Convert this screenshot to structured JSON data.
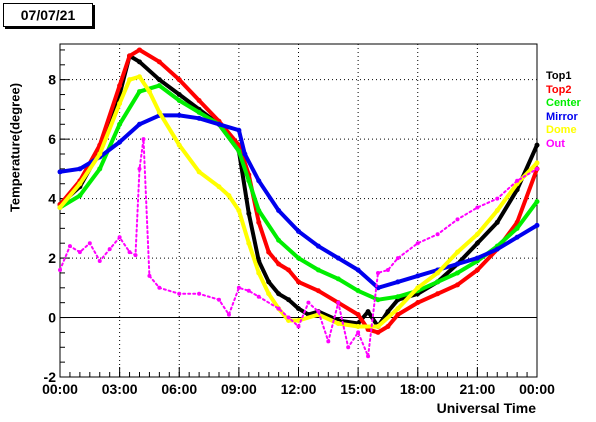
{
  "title": "07/07/21",
  "chart_data": {
    "type": "line",
    "xlabel": "Universal Time",
    "ylabel": "Temperature(degree)",
    "xlim": [
      0,
      24
    ],
    "ylim": [
      -2,
      9.2
    ],
    "x_ticks": [
      "00:00",
      "03:00",
      "06:00",
      "09:00",
      "12:00",
      "15:00",
      "18:00",
      "21:00",
      "00:00"
    ],
    "y_ticks": [
      "-2",
      "0",
      "2",
      "4",
      "6",
      "8"
    ],
    "grid": true,
    "legend_position": "right",
    "series": [
      {
        "name": "Top1",
        "color": "#000000",
        "style": "markers",
        "x": [
          0,
          1,
          2,
          3,
          3.5,
          4,
          5,
          6,
          7,
          8,
          9,
          9.5,
          10,
          10.5,
          11,
          11.5,
          12,
          12.5,
          13,
          14,
          15,
          15.5,
          16,
          16.5,
          17,
          18,
          19,
          20,
          21,
          22,
          23,
          24
        ],
        "y": [
          3.8,
          4.4,
          5.6,
          7.5,
          8.8,
          8.6,
          8.0,
          7.5,
          7.0,
          6.5,
          5.6,
          3.5,
          1.9,
          1.2,
          0.8,
          0.6,
          0.3,
          0.1,
          0.2,
          -0.1,
          -0.2,
          0.2,
          -0.3,
          0.2,
          0.6,
          0.8,
          1.2,
          1.8,
          2.5,
          3.2,
          4.3,
          5.8
        ]
      },
      {
        "name": "Top2",
        "color": "#ff0000",
        "style": "markers",
        "x": [
          0,
          1,
          2,
          3,
          3.5,
          4,
          5,
          6,
          7,
          8,
          9,
          9.5,
          10,
          10.5,
          11,
          11.5,
          12,
          13,
          14,
          15,
          15.5,
          16,
          16.5,
          17,
          18,
          19,
          20,
          21,
          22,
          23,
          24
        ],
        "y": [
          3.8,
          4.6,
          5.8,
          7.8,
          8.8,
          9.0,
          8.6,
          8.0,
          7.3,
          6.6,
          5.8,
          4.8,
          3.2,
          2.2,
          1.8,
          1.6,
          1.2,
          0.9,
          0.5,
          0.1,
          -0.4,
          -0.5,
          -0.3,
          0.1,
          0.5,
          0.8,
          1.1,
          1.6,
          2.3,
          3.2,
          5.0
        ]
      },
      {
        "name": "Center",
        "color": "#00ee00",
        "style": "markers",
        "x": [
          0,
          1,
          2,
          3,
          4,
          5,
          6,
          7,
          8,
          9,
          9.5,
          10,
          11,
          12,
          13,
          14,
          15,
          16,
          17,
          18,
          19,
          20,
          21,
          22,
          23,
          24
        ],
        "y": [
          3.7,
          4.1,
          5.0,
          6.5,
          7.6,
          7.8,
          7.3,
          6.9,
          6.5,
          5.6,
          4.6,
          3.6,
          2.6,
          2.0,
          1.6,
          1.3,
          0.9,
          0.6,
          0.7,
          0.9,
          1.2,
          1.5,
          1.9,
          2.4,
          3.0,
          3.9
        ]
      },
      {
        "name": "Mirror",
        "color": "#0000ee",
        "style": "markers",
        "x": [
          0,
          1,
          2,
          3,
          4,
          5,
          6,
          7,
          8,
          9,
          9.3,
          10,
          11,
          12,
          13,
          14,
          15,
          16,
          17,
          18,
          19,
          20,
          21,
          22,
          23,
          24
        ],
        "y": [
          4.9,
          5.0,
          5.4,
          5.9,
          6.5,
          6.8,
          6.8,
          6.7,
          6.5,
          6.3,
          5.5,
          4.6,
          3.6,
          2.9,
          2.4,
          2.0,
          1.6,
          1.0,
          1.2,
          1.4,
          1.6,
          1.8,
          2.0,
          2.3,
          2.7,
          3.1
        ]
      },
      {
        "name": "Dome",
        "color": "#ffff00",
        "style": "markers",
        "x": [
          0,
          1,
          2,
          3,
          3.5,
          4,
          4.5,
          5,
          6,
          7,
          8,
          8.5,
          9,
          9.5,
          10,
          10.5,
          11,
          11.5,
          12,
          13,
          14,
          15,
          16,
          17,
          18,
          19,
          20,
          21,
          22,
          23,
          24
        ],
        "y": [
          3.7,
          4.5,
          5.5,
          7.2,
          8.0,
          8.1,
          7.6,
          6.9,
          5.8,
          4.9,
          4.4,
          4.1,
          3.6,
          2.5,
          1.5,
          0.8,
          0.3,
          -0.1,
          -0.1,
          0.1,
          -0.2,
          -0.3,
          -0.3,
          0.3,
          1.0,
          1.5,
          2.2,
          2.8,
          3.6,
          4.5,
          5.2
        ]
      },
      {
        "name": "Out",
        "color": "#ff00ff",
        "style": "markers",
        "x": [
          0,
          0.5,
          1,
          1.5,
          2,
          2.5,
          3,
          3.5,
          3.8,
          4,
          4.2,
          4.5,
          5,
          6,
          7,
          8,
          8.5,
          9,
          9.5,
          10,
          11,
          11.5,
          12,
          12.5,
          13,
          13.5,
          14,
          14.5,
          15,
          15.5,
          16,
          16.5,
          17,
          18,
          19,
          20,
          21,
          22,
          23,
          24
        ],
        "y": [
          1.6,
          2.4,
          2.2,
          2.5,
          1.9,
          2.3,
          2.7,
          2.2,
          2.1,
          5.0,
          6.0,
          1.4,
          1.0,
          0.8,
          0.8,
          0.6,
          0.1,
          1.0,
          0.9,
          0.7,
          0.3,
          0.0,
          -0.3,
          0.5,
          0.2,
          -0.8,
          0.5,
          -1.0,
          -0.5,
          -1.3,
          1.5,
          1.6,
          2.0,
          2.5,
          2.8,
          3.3,
          3.7,
          4.0,
          4.6,
          5.0
        ]
      }
    ]
  }
}
